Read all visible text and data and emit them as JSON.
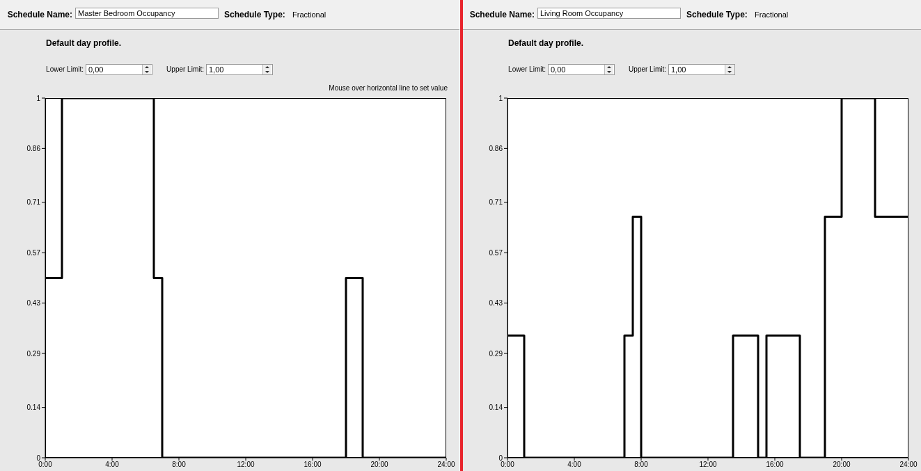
{
  "chart_data": [
    {
      "type": "step",
      "title": "Default day profile.",
      "annotations": [
        "Schedule Name:",
        "Master Bedroom Occupancy",
        "Schedule Type:",
        "Fractional",
        "Lower Limit:",
        "0,00",
        "Upper Limit:",
        "1,00",
        "Mouse over horizontal line to set value"
      ],
      "x": [
        0,
        1,
        6.5,
        7,
        18,
        19,
        24
      ],
      "series": [
        {
          "color": "#000000",
          "values": [
            0.5,
            1,
            0.5,
            0,
            0.5,
            0,
            0
          ]
        }
      ],
      "xlim": [
        0,
        24
      ],
      "xticks": [
        {
          "value": 0,
          "label": "0:00"
        },
        {
          "value": 4,
          "label": "4:00"
        },
        {
          "value": 8,
          "label": "8:00"
        },
        {
          "value": 12,
          "label": "12:00"
        },
        {
          "value": 16,
          "label": "16:00"
        },
        {
          "value": 20,
          "label": "20:00"
        },
        {
          "value": 24,
          "label": "24:00"
        }
      ],
      "ylim": [
        0,
        1
      ],
      "yticks": [
        0,
        0.14,
        0.29,
        0.43,
        0.57,
        0.71,
        0.86,
        1
      ]
    },
    {
      "type": "step",
      "title": "Default day profile.",
      "annotations": [
        "Schedule Name:",
        "Living Room Occupancy",
        "Schedule Type:",
        "Fractional",
        "Lower Limit:",
        "0,00",
        "Upper Limit:",
        "1,00"
      ],
      "x": [
        0,
        1,
        7,
        7.5,
        8,
        13.5,
        15,
        15.5,
        17.5,
        19,
        20,
        22,
        24
      ],
      "series": [
        {
          "color": "#000000",
          "values": [
            0.34,
            0,
            0.34,
            0.67,
            0,
            0.34,
            0,
            0.34,
            0,
            0.67,
            1,
            0.67,
            0.67
          ]
        }
      ],
      "xlim": [
        0,
        24
      ],
      "xticks": [
        {
          "value": 0,
          "label": "0:00"
        },
        {
          "value": 4,
          "label": "4:00"
        },
        {
          "value": 8,
          "label": "8:00"
        },
        {
          "value": 12,
          "label": "12:00"
        },
        {
          "value": 16,
          "label": "16:00"
        },
        {
          "value": 20,
          "label": "20:00"
        },
        {
          "value": 24,
          "label": "24:00"
        }
      ],
      "ylim": [
        0,
        1
      ],
      "yticks": [
        0,
        0.14,
        0.29,
        0.43,
        0.57,
        0.71,
        0.86,
        1
      ]
    }
  ]
}
